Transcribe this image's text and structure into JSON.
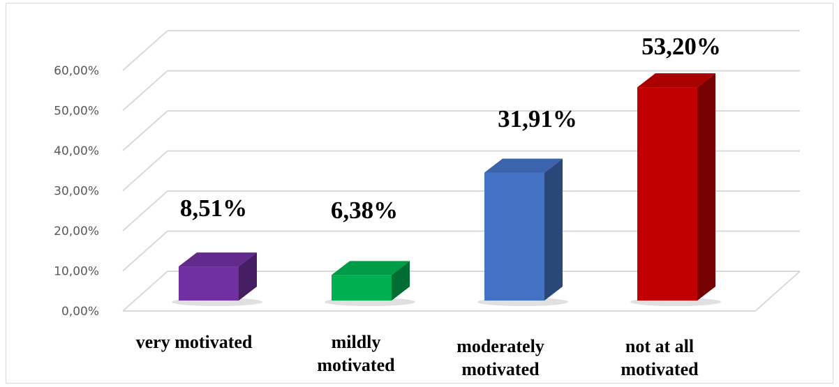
{
  "chart_data": {
    "type": "bar",
    "title": "",
    "xlabel": "",
    "ylabel": "",
    "ylim": [
      0,
      60
    ],
    "y_ticks": [
      "0,00%",
      "10,00%",
      "20,00%",
      "30,00%",
      "40,00%",
      "50,00%",
      "60,00%"
    ],
    "grid": true,
    "legend": "none",
    "categories": [
      "very motivated",
      "mildly\nmotivated",
      "moderately\nmotivated",
      "not at all\nmotivated"
    ],
    "values": [
      8.51,
      6.38,
      31.91,
      53.2
    ],
    "data_labels": [
      "8,51%",
      "6,38%",
      "31,91%",
      "53,20%"
    ],
    "colors": [
      "#7030a0",
      "#00b050",
      "#4472c4",
      "#c00000"
    ]
  }
}
